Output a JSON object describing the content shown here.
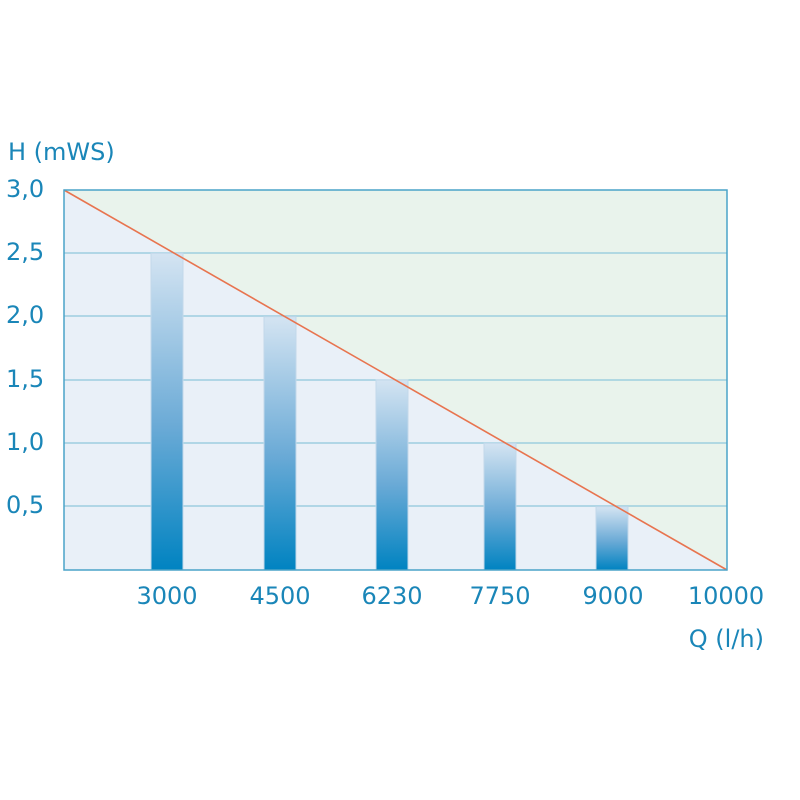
{
  "chart_data": {
    "type": "bar",
    "title": "",
    "xlabel": "Q (l/h)",
    "ylabel": "H (mWS)",
    "categories": [
      "3000",
      "4500",
      "6230",
      "7750",
      "9000"
    ],
    "values": [
      2.5,
      2.0,
      1.5,
      1.0,
      0.5
    ],
    "x_tick_labels": [
      "3000",
      "4500",
      "6230",
      "7750",
      "9000",
      "10000"
    ],
    "y_tick_labels": [
      "3,0",
      "2,5",
      "2,0",
      "1,5",
      "1,0",
      "0,5"
    ],
    "ylim": [
      0,
      3.0
    ],
    "grid": true,
    "legend": null,
    "annotations": [
      "Diagonal pump curve line from H=3,0 at Q=0 to H=0 at Q=10000; region above line shaded light green, below shaded light blue"
    ],
    "pump_curve": {
      "points": [
        [
          0,
          3.0
        ],
        [
          10000,
          0
        ]
      ],
      "color": "#e8744f"
    }
  },
  "colors": {
    "text": "#1a86b8",
    "axis": "#4aa3c8",
    "grid": "#8ec7dc",
    "below_curve": "#e9f0f8",
    "above_curve": "#e9f3ec",
    "bar_top": "#d4e4f2",
    "bar_bottom": "#0083c1",
    "curve": "#e8744f"
  },
  "labels": {
    "ylabel": "H (mWS)",
    "xlabel": "Q (l/h)",
    "yticks": [
      "3,0",
      "2,5",
      "2,0",
      "1,5",
      "1,0",
      "0,5"
    ],
    "xticks": [
      "3000",
      "4500",
      "6230",
      "7750",
      "9000",
      "10000"
    ]
  }
}
